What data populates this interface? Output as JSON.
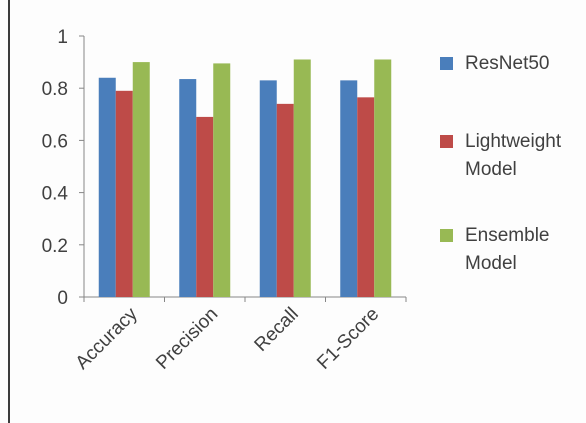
{
  "chart_data": {
    "type": "bar",
    "categories": [
      "Accuracy",
      "Precision",
      "Recall",
      "F1-Score"
    ],
    "series": [
      {
        "name": "ResNet50",
        "values": [
          0.84,
          0.835,
          0.83,
          0.83
        ],
        "color": "#4a7ebb"
      },
      {
        "name": "Lightweight Model",
        "values": [
          0.79,
          0.69,
          0.74,
          0.765
        ],
        "color": "#be4b48"
      },
      {
        "name": "Ensemble Model",
        "values": [
          0.9,
          0.895,
          0.91,
          0.91
        ],
        "color": "#98b954"
      }
    ],
    "y_ticks": [
      "0",
      "0.2",
      "0.4",
      "0.6",
      "0.8",
      "1"
    ],
    "ylim": [
      0,
      1
    ],
    "legend_position": "right",
    "grid": false
  }
}
